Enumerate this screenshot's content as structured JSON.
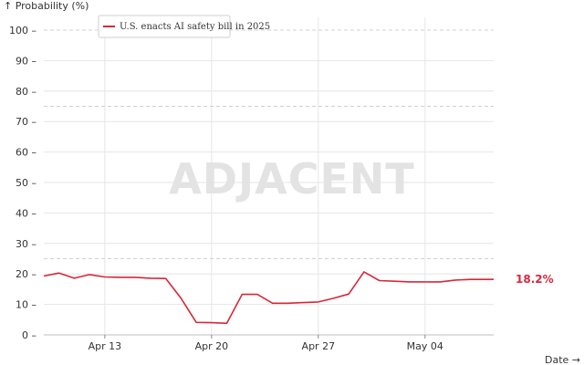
{
  "chart_data": {
    "type": "line",
    "ylabel": "↑ Probability (%)",
    "xlabel": "Date →",
    "ylim": [
      0,
      100
    ],
    "yticks": [
      0,
      10,
      20,
      30,
      40,
      50,
      60,
      70,
      80,
      90,
      100
    ],
    "dashed_gridlines": [
      25,
      75,
      100
    ],
    "xticks": [
      {
        "label": "Apr 13",
        "day": 13
      },
      {
        "label": "Apr 20",
        "day": 20
      },
      {
        "label": "Apr 27",
        "day": 27
      },
      {
        "label": "May 04",
        "day": 34
      }
    ],
    "xlim_days": [
      9,
      38.5
    ],
    "series": [
      {
        "name": "U.S. enacts AI safety bill in 2025",
        "color": "#d62839",
        "x": [
          9,
          10,
          11,
          12,
          13,
          14,
          15,
          16,
          17,
          18,
          19,
          20,
          21,
          22,
          23,
          24,
          25,
          26,
          27,
          28,
          29,
          30,
          31,
          32,
          33,
          34,
          35,
          36,
          37,
          38.5
        ],
        "y": [
          19.3,
          20.3,
          18.6,
          19.8,
          19.0,
          18.9,
          18.9,
          18.6,
          18.5,
          12.0,
          4.1,
          4.0,
          3.8,
          13.3,
          13.3,
          10.4,
          10.4,
          10.6,
          10.8,
          12.0,
          13.4,
          20.7,
          17.8,
          17.6,
          17.4,
          17.4,
          17.4,
          18.0,
          18.2,
          18.2
        ]
      }
    ],
    "end_value_label": "18.2%",
    "watermark": "ADJACENT",
    "legend_position": "top-left"
  }
}
